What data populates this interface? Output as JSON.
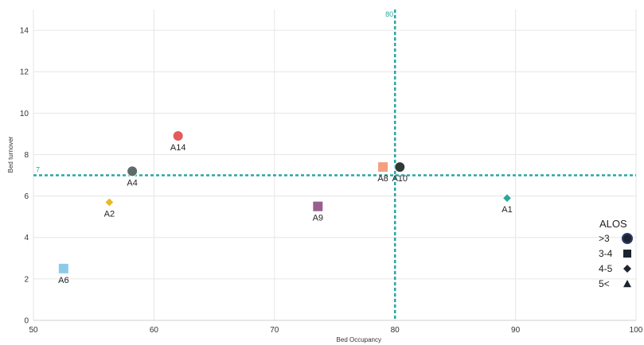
{
  "chart_data": {
    "type": "scatter",
    "xlabel": "Bed Occupancy",
    "ylabel": "Bed turnover",
    "xlim": [
      50,
      100
    ],
    "ylim": [
      0,
      15
    ],
    "x_ticks": [
      50,
      60,
      70,
      80,
      90,
      100
    ],
    "y_ticks": [
      0,
      2,
      4,
      6,
      8,
      10,
      12,
      14
    ],
    "grid": true,
    "reference_lines": [
      {
        "axis": "x",
        "value": 80,
        "label": "80",
        "color": "#2aa6a0"
      },
      {
        "axis": "y",
        "value": 7,
        "label": "7",
        "color": "#2aa6a0"
      }
    ],
    "points": [
      {
        "label": "A1",
        "x": 89.3,
        "y": 5.9,
        "shape": "diamond",
        "color": "#2aa79b"
      },
      {
        "label": "A2",
        "x": 56.3,
        "y": 5.7,
        "shape": "diamond",
        "color": "#e8b923"
      },
      {
        "label": "A4",
        "x": 58.2,
        "y": 7.2,
        "shape": "circle",
        "color": "#5d6b6b"
      },
      {
        "label": "A6",
        "x": 52.5,
        "y": 2.5,
        "shape": "square",
        "color": "#8ccbe8"
      },
      {
        "label": "A8",
        "x": 79.0,
        "y": 7.4,
        "shape": "square",
        "color": "#f4a07e"
      },
      {
        "label": "A9",
        "x": 73.6,
        "y": 5.5,
        "shape": "square",
        "color": "#9a5f8c"
      },
      {
        "label": "A10",
        "x": 80.4,
        "y": 7.4,
        "shape": "circle",
        "color": "#2f3a36"
      },
      {
        "label": "A14",
        "x": 62.0,
        "y": 8.9,
        "shape": "circle",
        "color": "#e55a5a"
      }
    ],
    "legend": {
      "title": "ALOS",
      "placement": "bottom-right",
      "entries": [
        {
          "label": ">3",
          "shape": "circle"
        },
        {
          "label": "3-4",
          "shape": "square"
        },
        {
          "label": "4-5",
          "shape": "diamond"
        },
        {
          "label": "5<",
          "shape": "triangle"
        }
      ]
    }
  }
}
